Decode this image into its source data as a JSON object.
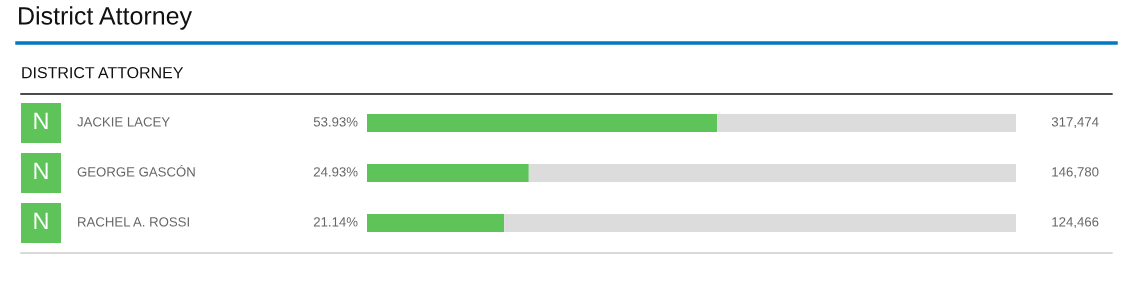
{
  "chart_data": {
    "type": "bar",
    "orientation": "horizontal",
    "stacked": true,
    "title": "District Attorney",
    "subtitle": "DISTRICT ATTORNEY",
    "categories": [
      "JACKIE LACEY",
      "GEORGE GASCÓN",
      "RACHEL A. ROSSI"
    ],
    "series": [
      {
        "color": "#5ec45a",
        "values": [
          53.93,
          24.93,
          21.14
        ],
        "value_labels": [
          "53.93%",
          "24.93%",
          "21.14%"
        ]
      },
      {
        "color": "#dcdcdc",
        "values": [
          46.07,
          75.07,
          78.86
        ]
      }
    ],
    "annotations": [
      "N",
      "317,474",
      "N",
      "146,780",
      "N",
      "124,466"
    ]
  }
}
